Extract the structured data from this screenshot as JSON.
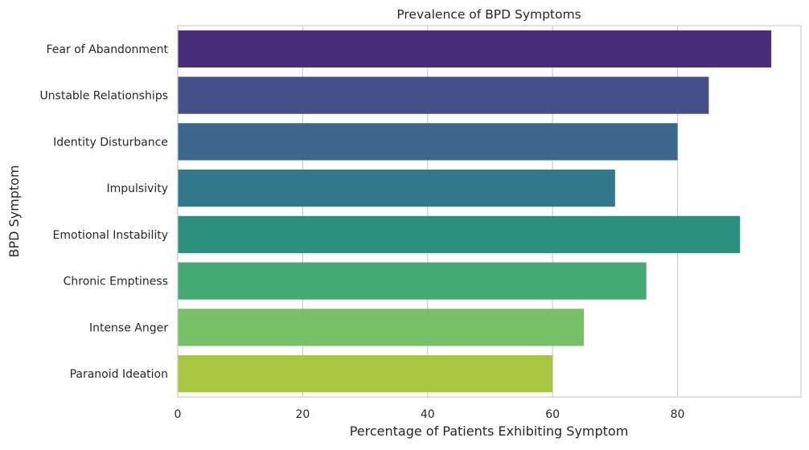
{
  "chart_data": {
    "type": "bar",
    "orientation": "horizontal",
    "title": "Prevalence of BPD Symptoms",
    "xlabel": "Percentage of Patients Exhibiting Symptom",
    "ylabel": "BPD Symptom",
    "xlim": [
      0,
      99.75
    ],
    "xticks": [
      0,
      20,
      40,
      60,
      80
    ],
    "grid": true,
    "legend": "none",
    "categories": [
      "Fear of Abandonment",
      "Unstable Relationships",
      "Identity Disturbance",
      "Impulsivity",
      "Emotional Instability",
      "Chronic Emptiness",
      "Intense Anger",
      "Paranoid Ideation"
    ],
    "values": [
      95,
      85,
      80,
      70,
      90,
      75,
      65,
      60
    ],
    "colors": [
      "#472c7a",
      "#45508a",
      "#3b678c",
      "#30798a",
      "#2b8f7e",
      "#44aa74",
      "#77c065",
      "#a8c63f"
    ]
  }
}
